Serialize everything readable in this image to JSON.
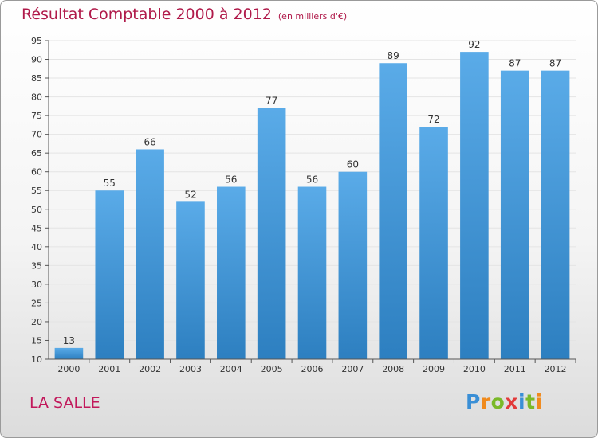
{
  "title": "Résultat Comptable 2000 à 2012",
  "subtitle": "(en milliers d'€)",
  "commune": "LA SALLE",
  "logo": {
    "text": "Proxiti",
    "letters": [
      {
        "ch": "P",
        "color": "#3a8fd6"
      },
      {
        "ch": "r",
        "color": "#f08a1c"
      },
      {
        "ch": "o",
        "color": "#7ab929"
      },
      {
        "ch": "x",
        "color": "#e23b3b"
      },
      {
        "ch": "i",
        "color": "#3a8fd6"
      },
      {
        "ch": "t",
        "color": "#7ab929"
      },
      {
        "ch": "i",
        "color": "#f08a1c"
      }
    ]
  },
  "colors": {
    "bar_light": "#5aabe8",
    "bar_dark": "#2d7fc0",
    "grid": "#e4e4e4",
    "axis": "#555555",
    "title": "#b01a4a"
  },
  "chart_data": {
    "type": "bar",
    "title": "Résultat Comptable 2000 à 2012",
    "ylabel": "(en milliers d'€)",
    "xlabel": "",
    "categories": [
      "2000",
      "2001",
      "2002",
      "2003",
      "2004",
      "2005",
      "2006",
      "2007",
      "2008",
      "2009",
      "2010",
      "2011",
      "2012"
    ],
    "values": [
      13,
      55,
      66,
      52,
      56,
      77,
      56,
      60,
      89,
      72,
      92,
      87,
      87
    ],
    "ylim": [
      10,
      95
    ],
    "yticks": [
      10,
      15,
      20,
      25,
      30,
      35,
      40,
      45,
      50,
      55,
      60,
      65,
      70,
      75,
      80,
      85,
      90,
      95
    ],
    "grid": true,
    "legend": "none"
  }
}
